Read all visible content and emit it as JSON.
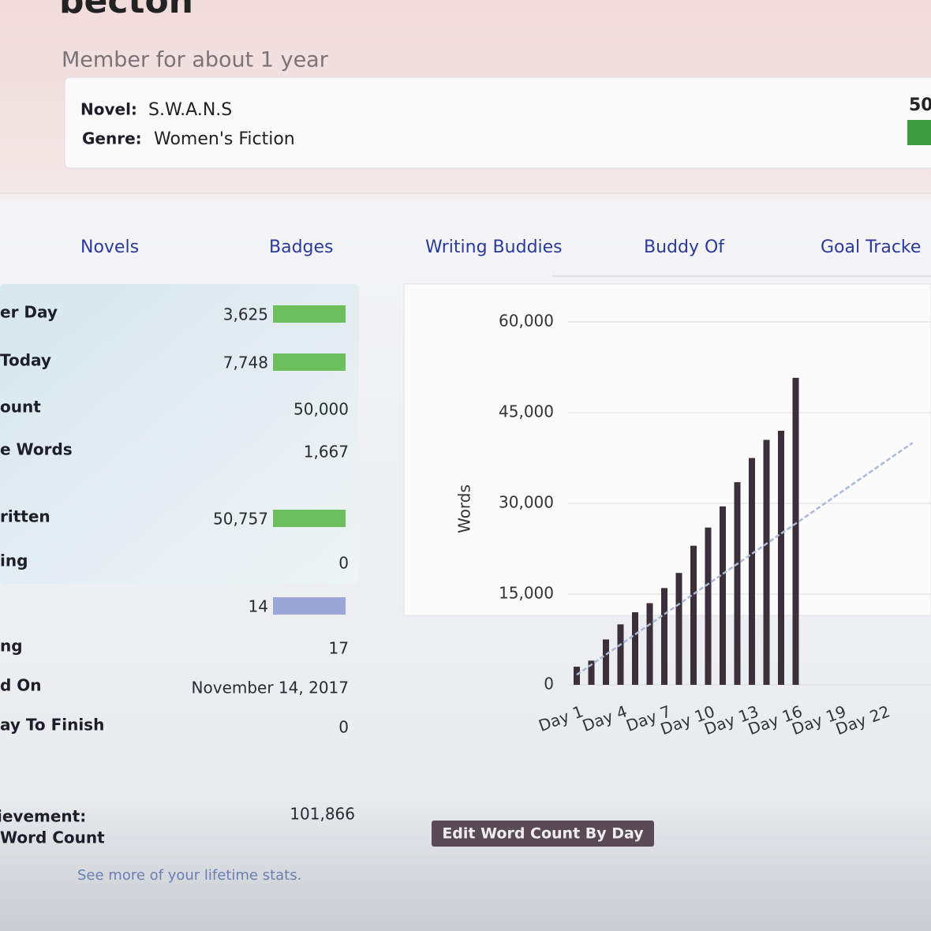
{
  "header": {
    "name": "becton",
    "member_since": "Member for about 1 year"
  },
  "novel": {
    "title_label": "Novel:",
    "title": "S.W.A.N.S",
    "genre_label": "Genre:",
    "genre": "Women's Fiction",
    "corner": "50"
  },
  "tabs": [
    "Novels",
    "Badges",
    "Writing Buddies",
    "Buddy Of",
    "Goal Tracke"
  ],
  "stats": {
    "rows": [
      {
        "label": "er Day",
        "value": "3,625"
      },
      {
        "label": "Today",
        "value": "7,748"
      },
      {
        "label": "ount",
        "value": "50,000"
      },
      {
        "label": "e Words",
        "value": "1,667"
      },
      {
        "label": "ritten",
        "value": "50,757"
      },
      {
        "label": "ing",
        "value": "0"
      },
      {
        "label": "",
        "value": "14"
      },
      {
        "label": "ng",
        "value": "17"
      },
      {
        "label": "d On",
        "value": "November 14, 2017"
      },
      {
        "label": "ay To Finish",
        "value": "0"
      }
    ],
    "achievement_label": "ievement:",
    "achievement_sub": "Word Count",
    "achievement_value": "101,866",
    "lifetime_link": "See more of your lifetime stats."
  },
  "button": "Edit Word Count By Day",
  "chart_data": {
    "type": "bar",
    "ylabel": "Words",
    "categories": [
      "Day 1",
      null,
      null,
      "Day 4",
      null,
      null,
      "Day 7",
      null,
      null,
      "Day 10",
      null,
      null,
      "Day 13",
      null,
      null,
      "Day 16",
      null,
      null,
      "Day 19",
      null,
      null,
      "Day 22",
      null,
      null
    ],
    "values": [
      3000,
      4000,
      7500,
      10000,
      12000,
      13500,
      16000,
      18500,
      23000,
      26000,
      29500,
      33500,
      37500,
      40500,
      42000,
      50757,
      null,
      null,
      null,
      null,
      null,
      null,
      null,
      null
    ],
    "color": "#3b2f39",
    "target": [
      1667,
      3333,
      5000,
      6667,
      8333,
      10000,
      11667,
      13333,
      15000,
      16667,
      18333,
      20000,
      21667,
      23333,
      25000,
      26667,
      28333,
      30000,
      31667,
      33333,
      35000,
      36667,
      38333,
      40000
    ],
    "target_color": "#a9b9d9",
    "ylim": [
      0,
      60000
    ],
    "yticks": [
      {
        "value": 0,
        "label": "0"
      },
      {
        "value": 15000,
        "label": "15,000"
      },
      {
        "value": 30000,
        "label": "30,000"
      },
      {
        "value": 45000,
        "label": "45,000"
      },
      {
        "value": 60000,
        "label": "60,000"
      }
    ],
    "grid": true
  }
}
